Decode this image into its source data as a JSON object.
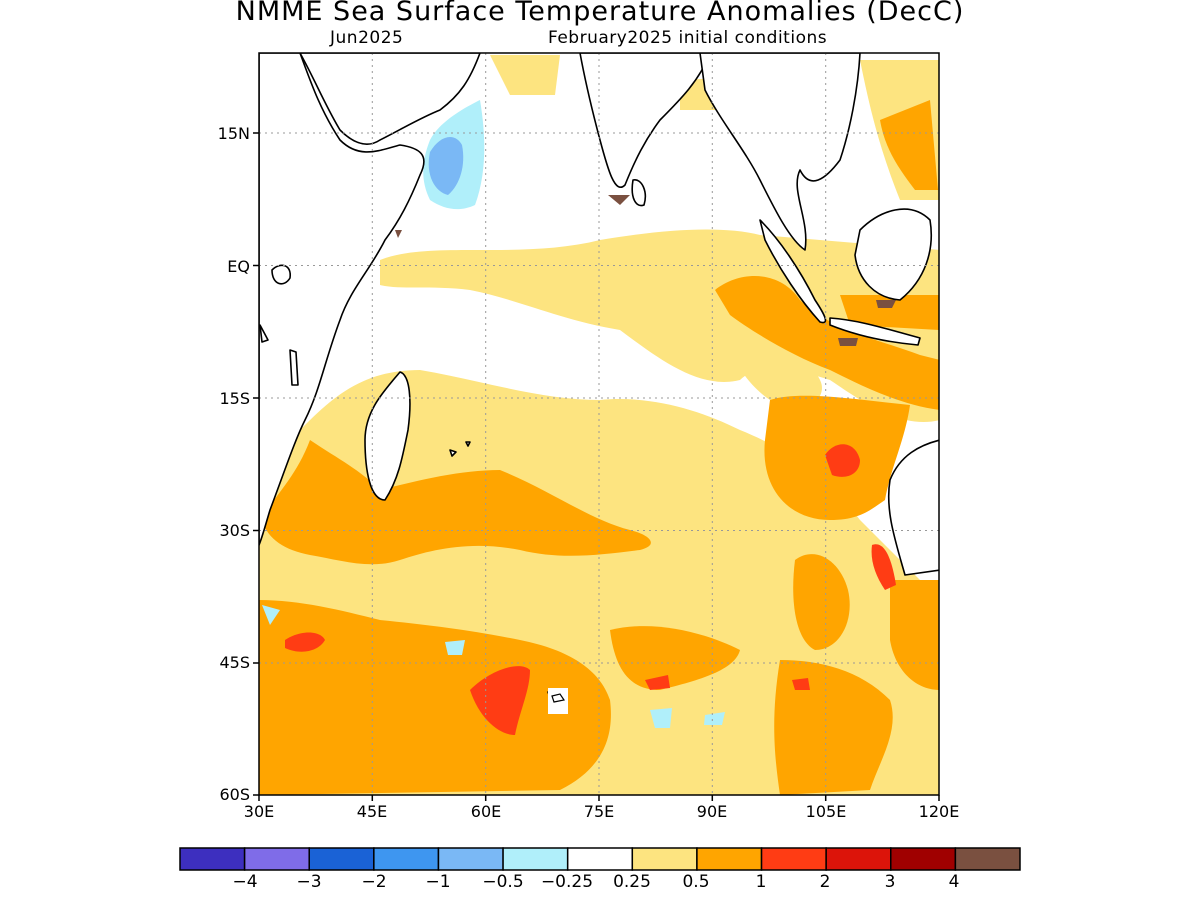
{
  "title": "NMME Sea Surface Temperature Anomalies (DecC)",
  "subtitle_left": "Jun2025",
  "subtitle_right": "February2025 initial conditions",
  "map": {
    "lat_labels": [
      "15N",
      "EQ",
      "15S",
      "30S",
      "45S",
      "60S"
    ],
    "lon_labels": [
      "30E",
      "45E",
      "60E",
      "75E",
      "90E",
      "105E",
      "120E"
    ],
    "ocean_color": "#ffffff",
    "land_outline_color": "#000000"
  },
  "colorbar": {
    "colors": [
      "#3d2fbf",
      "#7f6ce8",
      "#1a62d6",
      "#3e96f0",
      "#7ab8f5",
      "#b0effa",
      "#ffffff",
      "#fde480",
      "#ffa500",
      "#ff3c14",
      "#dc140a",
      "#a00000",
      "#7a5040"
    ],
    "labels": [
      "-4",
      "-3",
      "-2",
      "-1",
      "-0.5",
      "-0.25",
      "0.25",
      "0.5",
      "1",
      "2",
      "3",
      "4"
    ]
  },
  "regions": {
    "weak_warm": "#fde480",
    "warm": "#ffa500",
    "strong_warm": "#ff3c14",
    "very_strong": "#7a5040",
    "weak_cool": "#b0effa",
    "cool": "#7ab8f5"
  }
}
